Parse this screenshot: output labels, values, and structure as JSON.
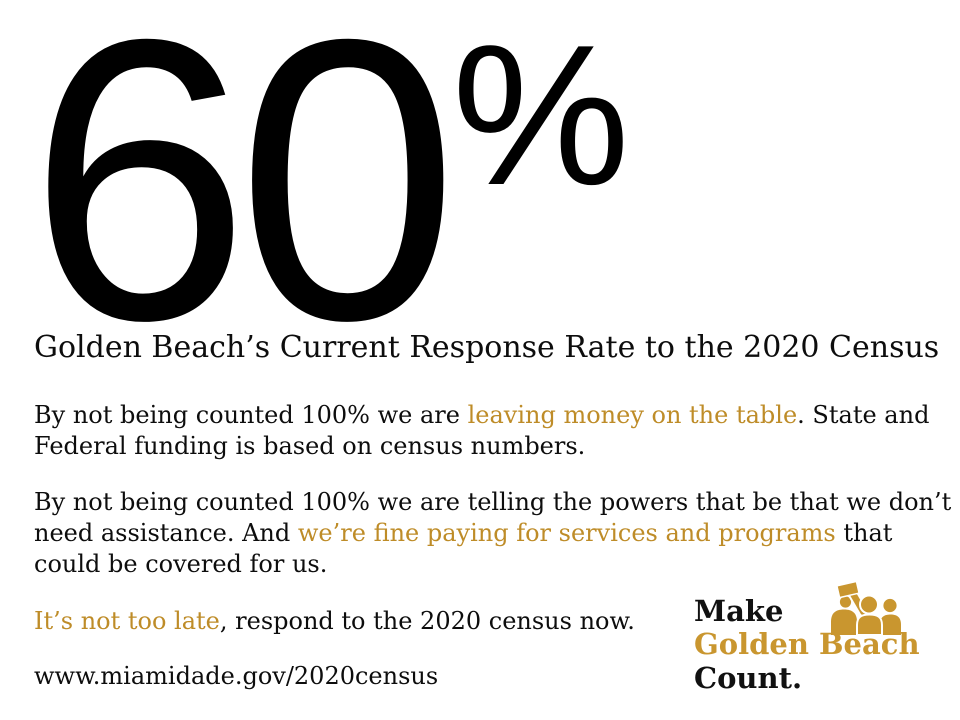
{
  "colors": {
    "text_black": "#0d0d0d",
    "gold": "#BE8C28",
    "logo_gold": "#C9962F"
  },
  "hero": {
    "value": "60",
    "unit": "%"
  },
  "heading": "Golden Beach’s Current Response Rate to the 2020 Census",
  "paragraphs": [
    {
      "name": "funding-paragraph",
      "segments": [
        {
          "text": "By not being counted 100% we are "
        },
        {
          "text": "leaving money on the table",
          "gold": true
        },
        {
          "text": ". State and"
        },
        {
          "break": true
        },
        {
          "text": "Federal funding is based on census numbers."
        }
      ]
    },
    {
      "name": "assistance-paragraph",
      "segments": [
        {
          "text": "By not being counted 100% we are telling the powers that be that we don’t"
        },
        {
          "break": true
        },
        {
          "text": "need assistance. And "
        },
        {
          "text": "we’re fine paying for services and programs",
          "gold": true
        },
        {
          "text": " that"
        },
        {
          "break": true
        },
        {
          "text": "could be covered for us."
        }
      ]
    },
    {
      "name": "call-to-action-paragraph",
      "segments": [
        {
          "text": "It’s not too late",
          "gold": true
        },
        {
          "text": ", respond to the 2020 census now."
        }
      ]
    }
  ],
  "link": {
    "url_text": "www.miamidade.gov/2020census"
  },
  "logo": {
    "line1": "Make",
    "line2": "Golden Beach",
    "line3": "Count.",
    "icon": "people-raising-sign-icon"
  }
}
